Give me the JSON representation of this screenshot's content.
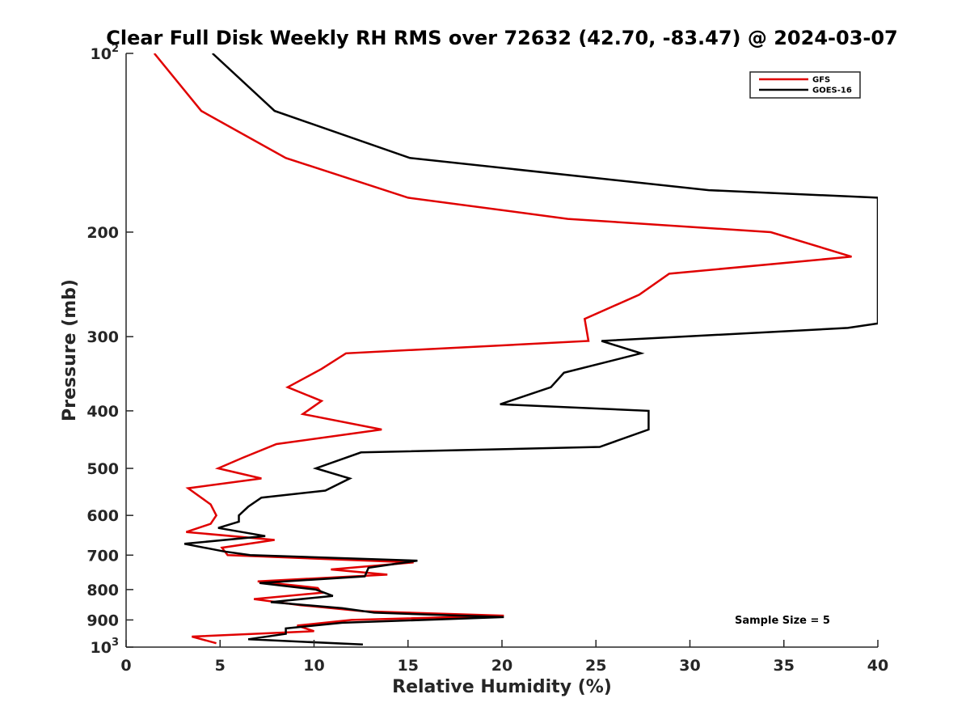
{
  "chart_data": {
    "type": "line",
    "title": "Clear Full Disk Weekly RH RMS over 72632 (42.70, -83.47) @ 2024-03-07",
    "xlabel": "Relative Humidity (%)",
    "ylabel": "Pressure (mb)",
    "xlim": [
      0,
      40
    ],
    "ylim": [
      100,
      1000
    ],
    "y_scale": "log",
    "y_reversed": true,
    "x_ticks": [
      0,
      5,
      10,
      15,
      20,
      25,
      30,
      35,
      40
    ],
    "y_ticks": [
      {
        "value": 100,
        "base": "10",
        "exp": "2"
      },
      {
        "value": 200,
        "label": "200"
      },
      {
        "value": 300,
        "label": "300"
      },
      {
        "value": 400,
        "label": "400"
      },
      {
        "value": 500,
        "label": "500"
      },
      {
        "value": 600,
        "label": "600"
      },
      {
        "value": 700,
        "label": "700"
      },
      {
        "value": 800,
        "label": "800"
      },
      {
        "value": 900,
        "label": "900"
      },
      {
        "value": 1000,
        "base": "10",
        "exp": "3"
      }
    ],
    "grid": false,
    "legend_position": "top-right",
    "annotation": "Sample Size = 5",
    "series": [
      {
        "name": "GFS",
        "color": "#e00000",
        "points": [
          [
            1.5,
            100
          ],
          [
            4.0,
            125
          ],
          [
            8.5,
            150
          ],
          [
            15.0,
            175
          ],
          [
            23.5,
            190
          ],
          [
            34.3,
            200
          ],
          [
            38.6,
            220
          ],
          [
            28.9,
            235
          ],
          [
            27.3,
            255
          ],
          [
            24.4,
            280
          ],
          [
            24.6,
            305
          ],
          [
            11.7,
            320
          ],
          [
            10.4,
            340
          ],
          [
            8.6,
            365
          ],
          [
            10.4,
            385
          ],
          [
            9.4,
            405
          ],
          [
            13.6,
            430
          ],
          [
            8.0,
            455
          ],
          [
            6.2,
            480
          ],
          [
            4.9,
            500
          ],
          [
            7.2,
            520
          ],
          [
            3.3,
            540
          ],
          [
            4.5,
            575
          ],
          [
            4.8,
            600
          ],
          [
            4.5,
            620
          ],
          [
            3.2,
            640
          ],
          [
            7.9,
            660
          ],
          [
            5.1,
            680
          ],
          [
            5.4,
            700
          ],
          [
            15.3,
            720
          ],
          [
            10.9,
            740
          ],
          [
            13.9,
            755
          ],
          [
            7.0,
            775
          ],
          [
            10.2,
            795
          ],
          [
            10.4,
            810
          ],
          [
            6.8,
            830
          ],
          [
            9.3,
            850
          ],
          [
            12.6,
            870
          ],
          [
            20.1,
            885
          ],
          [
            12.0,
            900
          ],
          [
            9.1,
            920
          ],
          [
            10.0,
            940
          ],
          [
            3.5,
            960
          ],
          [
            4.8,
            985
          ]
        ]
      },
      {
        "name": "GOES-16",
        "color": "#000000",
        "points": [
          [
            4.6,
            100
          ],
          [
            7.9,
            125
          ],
          [
            15.1,
            150
          ],
          [
            31.0,
            170
          ],
          [
            40.0,
            175
          ],
          [
            40.0,
            285
          ],
          [
            38.4,
            290
          ],
          [
            25.3,
            305
          ],
          [
            27.4,
            320
          ],
          [
            23.3,
            345
          ],
          [
            22.6,
            365
          ],
          [
            19.9,
            390
          ],
          [
            27.8,
            400
          ],
          [
            27.8,
            430
          ],
          [
            25.2,
            460
          ],
          [
            12.5,
            470
          ],
          [
            10.1,
            500
          ],
          [
            11.9,
            520
          ],
          [
            10.6,
            545
          ],
          [
            7.2,
            560
          ],
          [
            6.5,
            580
          ],
          [
            6.0,
            600
          ],
          [
            6.0,
            615
          ],
          [
            4.9,
            630
          ],
          [
            7.4,
            650
          ],
          [
            3.1,
            670
          ],
          [
            5.2,
            690
          ],
          [
            6.6,
            700
          ],
          [
            15.5,
            715
          ],
          [
            12.9,
            735
          ],
          [
            12.7,
            760
          ],
          [
            7.1,
            780
          ],
          [
            10.1,
            800
          ],
          [
            11.0,
            820
          ],
          [
            7.7,
            840
          ],
          [
            11.5,
            860
          ],
          [
            13.2,
            875
          ],
          [
            20.1,
            890
          ],
          [
            11.5,
            910
          ],
          [
            8.5,
            930
          ],
          [
            8.5,
            950
          ],
          [
            6.5,
            970
          ],
          [
            12.6,
            990
          ]
        ]
      }
    ]
  }
}
